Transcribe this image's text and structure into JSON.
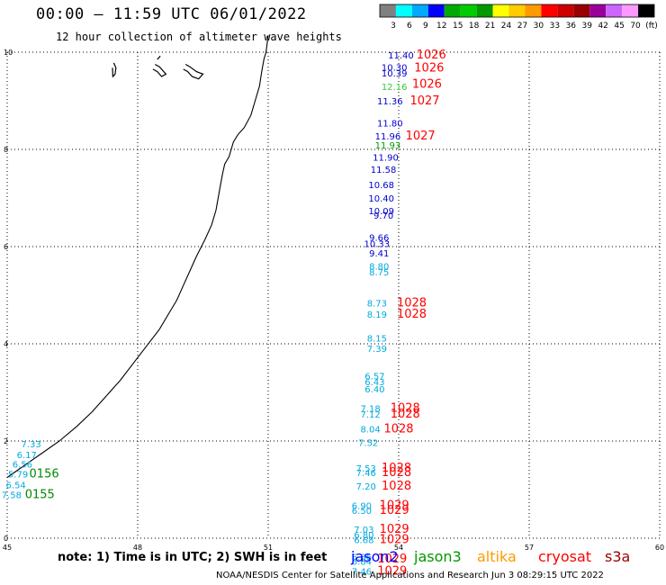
{
  "title": "00:00 – 11:59 UTC 06/01/2022",
  "subtitle": "12 hour collection of altimeter wave heights",
  "colorbar": {
    "colors": [
      "#808080",
      "#00ffff",
      "#00aaff",
      "#0000ff",
      "#00aa00",
      "#00cc00",
      "#009900",
      "#ffff00",
      "#ffcc00",
      "#ff9900",
      "#ff0000",
      "#cc0000",
      "#990000",
      "#990099",
      "#cc66ff",
      "#ff99ff",
      "#000000"
    ],
    "labels": [
      "3",
      "6",
      "9",
      "12",
      "15",
      "18",
      "21",
      "24",
      "27",
      "30",
      "33",
      "36",
      "39",
      "42",
      "45",
      "70",
      "(ft)"
    ]
  },
  "axes": {
    "x_ticks": [
      "45",
      "48",
      "51",
      "54",
      "57",
      "60"
    ],
    "y_ticks": [
      "0",
      "2",
      "4",
      "6",
      "8",
      "10"
    ],
    "xlim": [
      45,
      60
    ],
    "ylim": [
      0,
      10
    ]
  },
  "observations": [
    {
      "lon": 54.05,
      "lat": 9.87,
      "value": "11.40",
      "color": "#0000cc"
    },
    {
      "lon": 53.9,
      "lat": 9.62,
      "value": "10.30",
      "color": "#0000cc"
    },
    {
      "lon": 53.9,
      "lat": 9.5,
      "value": "10.39",
      "color": "#0000cc"
    },
    {
      "lon": 53.9,
      "lat": 9.22,
      "value": "12.16",
      "color": "#33cc33"
    },
    {
      "lon": 53.8,
      "lat": 8.93,
      "value": "11.36",
      "color": "#0000cc"
    },
    {
      "lon": 53.8,
      "lat": 8.47,
      "value": "11.80",
      "color": "#0000cc"
    },
    {
      "lon": 53.75,
      "lat": 8.2,
      "value": "11.96",
      "color": "#0000cc"
    },
    {
      "lon": 53.75,
      "lat": 8.02,
      "value": "11.93",
      "color": "#009900"
    },
    {
      "lon": 53.7,
      "lat": 7.77,
      "value": "11.90",
      "color": "#0000cc"
    },
    {
      "lon": 53.65,
      "lat": 7.52,
      "value": "11.58",
      "color": "#0000cc"
    },
    {
      "lon": 53.6,
      "lat": 7.2,
      "value": "10.68",
      "color": "#0000cc"
    },
    {
      "lon": 53.6,
      "lat": 6.93,
      "value": "10.40",
      "color": "#0000cc"
    },
    {
      "lon": 53.6,
      "lat": 6.67,
      "value": "10.09",
      "color": "#0000cc"
    },
    {
      "lon": 53.65,
      "lat": 6.57,
      "value": "9.70",
      "color": "#0000cc"
    },
    {
      "lon": 53.55,
      "lat": 6.12,
      "value": "9.66",
      "color": "#0000cc"
    },
    {
      "lon": 53.5,
      "lat": 5.99,
      "value": "10.33",
      "color": "#0000cc"
    },
    {
      "lon": 53.55,
      "lat": 5.8,
      "value": "9.41",
      "color": "#0000cc"
    },
    {
      "lon": 53.55,
      "lat": 5.53,
      "value": "8.80",
      "color": "#00aadd"
    },
    {
      "lon": 53.55,
      "lat": 5.41,
      "value": "8.75",
      "color": "#00aadd"
    },
    {
      "lon": 53.5,
      "lat": 4.77,
      "value": "8.73",
      "color": "#00aadd"
    },
    {
      "lon": 53.5,
      "lat": 4.54,
      "value": "8.19",
      "color": "#00aadd"
    },
    {
      "lon": 53.5,
      "lat": 4.05,
      "value": "8.15",
      "color": "#00aadd"
    },
    {
      "lon": 53.5,
      "lat": 3.83,
      "value": "7.39",
      "color": "#00aadd"
    },
    {
      "lon": 53.45,
      "lat": 3.27,
      "value": "6.57",
      "color": "#00aadd"
    },
    {
      "lon": 53.45,
      "lat": 3.15,
      "value": "6.43",
      "color": "#00aadd"
    },
    {
      "lon": 53.45,
      "lat": 3.0,
      "value": "6.40",
      "color": "#00aadd"
    },
    {
      "lon": 53.35,
      "lat": 2.6,
      "value": "7.18",
      "color": "#00aadd"
    },
    {
      "lon": 53.35,
      "lat": 2.48,
      "value": "7.12",
      "color": "#00aadd"
    },
    {
      "lon": 53.35,
      "lat": 2.18,
      "value": "8.04",
      "color": "#00aadd"
    },
    {
      "lon": 53.3,
      "lat": 1.9,
      "value": "7.52",
      "color": "#00aadd"
    },
    {
      "lon": 53.25,
      "lat": 1.37,
      "value": "7.53",
      "color": "#00aadd"
    },
    {
      "lon": 53.25,
      "lat": 1.28,
      "value": "7.46",
      "color": "#00aadd"
    },
    {
      "lon": 53.25,
      "lat": 1.0,
      "value": "7.20",
      "color": "#00aadd"
    },
    {
      "lon": 53.15,
      "lat": 0.6,
      "value": "6.90",
      "color": "#00aadd"
    },
    {
      "lon": 53.15,
      "lat": 0.5,
      "value": "6.50",
      "color": "#00aadd"
    },
    {
      "lon": 53.2,
      "lat": 0.11,
      "value": "7.03",
      "color": "#00aadd"
    },
    {
      "lon": 53.2,
      "lat": 0.0,
      "value": "6.80",
      "color": "#00aadd"
    },
    {
      "lon": 53.2,
      "lat": -0.1,
      "value": "6.68",
      "color": "#00aadd"
    },
    {
      "lon": 53.15,
      "lat": -0.45,
      "value": "6.86",
      "color": "#00aadd"
    },
    {
      "lon": 53.15,
      "lat": -0.55,
      "value": "6.84",
      "color": "#00aadd"
    },
    {
      "lon": 53.15,
      "lat": -0.75,
      "value": "7.46",
      "color": "#00aadd"
    },
    {
      "lon": 45.55,
      "lat": 1.87,
      "value": "7.33",
      "color": "#00aadd"
    },
    {
      "lon": 45.45,
      "lat": 1.65,
      "value": "6.17",
      "color": "#00aadd"
    },
    {
      "lon": 45.35,
      "lat": 1.45,
      "value": "6.56",
      "color": "#00aadd"
    },
    {
      "lon": 45.25,
      "lat": 1.25,
      "value": "5.79",
      "color": "#00aadd"
    },
    {
      "lon": 45.2,
      "lat": 1.03,
      "value": "6.54",
      "color": "#00aadd"
    },
    {
      "lon": 45.1,
      "lat": 0.82,
      "value": "7.58",
      "color": "#00aadd"
    }
  ],
  "pressure_labels": [
    {
      "lon": 54.75,
      "lat": 9.87,
      "text": "1026",
      "color": "#ff0000"
    },
    {
      "lon": 54.7,
      "lat": 9.6,
      "text": "1026",
      "color": "#ff0000"
    },
    {
      "lon": 54.65,
      "lat": 9.27,
      "text": "1026",
      "color": "#ff0000"
    },
    {
      "lon": 54.6,
      "lat": 8.93,
      "text": "1027",
      "color": "#ff0000"
    },
    {
      "lon": 54.5,
      "lat": 8.2,
      "text": "1027",
      "color": "#ff0000"
    },
    {
      "lon": 54.3,
      "lat": 4.77,
      "text": "1028",
      "color": "#ff0000"
    },
    {
      "lon": 54.3,
      "lat": 4.54,
      "text": "1028",
      "color": "#ff0000"
    },
    {
      "lon": 54.15,
      "lat": 2.6,
      "text": "1028",
      "color": "#ff0000"
    },
    {
      "lon": 54.15,
      "lat": 2.48,
      "text": "1028",
      "color": "#ff0000"
    },
    {
      "lon": 54.0,
      "lat": 2.18,
      "text": "1028",
      "color": "#ff0000"
    },
    {
      "lon": 53.95,
      "lat": 1.37,
      "text": "1028",
      "color": "#ff0000"
    },
    {
      "lon": 53.95,
      "lat": 1.28,
      "text": "1028",
      "color": "#ff0000"
    },
    {
      "lon": 53.95,
      "lat": 1.0,
      "text": "1028",
      "color": "#ff0000"
    },
    {
      "lon": 53.9,
      "lat": 0.6,
      "text": "1029",
      "color": "#ff0000"
    },
    {
      "lon": 53.9,
      "lat": 0.5,
      "text": "1029",
      "color": "#ff0000"
    },
    {
      "lon": 53.9,
      "lat": 0.11,
      "text": "1029",
      "color": "#ff0000"
    },
    {
      "lon": 53.9,
      "lat": -0.1,
      "text": "1029",
      "color": "#ff0000"
    },
    {
      "lon": 53.85,
      "lat": -0.5,
      "text": "1029",
      "color": "#ff0000"
    },
    {
      "lon": 53.85,
      "lat": -0.75,
      "text": "1029",
      "color": "#ff0000"
    },
    {
      "lon": 45.85,
      "lat": 1.25,
      "text": "0156",
      "color": "#008800"
    },
    {
      "lon": 45.75,
      "lat": 0.82,
      "text": "0155",
      "color": "#008800"
    }
  ],
  "coastline": [
    [
      51.0,
      10.35
    ],
    [
      50.95,
      10.0
    ],
    [
      50.9,
      9.85
    ],
    [
      50.85,
      9.6
    ],
    [
      50.8,
      9.3
    ],
    [
      50.7,
      9.0
    ],
    [
      50.6,
      8.7
    ],
    [
      50.45,
      8.45
    ],
    [
      50.3,
      8.3
    ],
    [
      50.2,
      8.15
    ],
    [
      50.15,
      8.0
    ],
    [
      50.1,
      7.85
    ],
    [
      50.0,
      7.7
    ],
    [
      49.95,
      7.5
    ],
    [
      49.9,
      7.25
    ],
    [
      49.85,
      7.0
    ],
    [
      49.8,
      6.75
    ],
    [
      49.7,
      6.45
    ],
    [
      49.55,
      6.15
    ],
    [
      49.35,
      5.8
    ],
    [
      49.2,
      5.5
    ],
    [
      49.05,
      5.2
    ],
    [
      48.9,
      4.9
    ],
    [
      48.7,
      4.6
    ],
    [
      48.5,
      4.3
    ],
    [
      48.2,
      3.95
    ],
    [
      47.9,
      3.6
    ],
    [
      47.6,
      3.25
    ],
    [
      47.3,
      2.95
    ],
    [
      46.95,
      2.6
    ],
    [
      46.6,
      2.3
    ],
    [
      46.2,
      2.0
    ],
    [
      45.8,
      1.75
    ],
    [
      45.4,
      1.5
    ],
    [
      45.0,
      1.25
    ]
  ],
  "islands": [
    [
      [
        47.45,
        9.78
      ],
      [
        47.5,
        9.68
      ],
      [
        47.48,
        9.55
      ],
      [
        47.43,
        9.5
      ],
      [
        47.42,
        9.68
      ]
    ],
    [
      [
        48.35,
        9.65
      ],
      [
        48.45,
        9.6
      ],
      [
        48.55,
        9.5
      ],
      [
        48.65,
        9.55
      ],
      [
        48.5,
        9.7
      ],
      [
        48.4,
        9.75
      ]
    ],
    [
      [
        48.45,
        9.85
      ],
      [
        48.52,
        9.92
      ]
    ],
    [
      [
        49.1,
        9.75
      ],
      [
        49.2,
        9.7
      ],
      [
        49.35,
        9.6
      ],
      [
        49.5,
        9.55
      ],
      [
        49.4,
        9.45
      ],
      [
        49.25,
        9.5
      ],
      [
        49.15,
        9.6
      ],
      [
        49.05,
        9.65
      ]
    ]
  ],
  "note": "note: 1) Time is in UTC; 2) SWH is in feet",
  "satellites": [
    {
      "name": "jason2",
      "color": "#0000ff"
    },
    {
      "name": "jason3",
      "color": "#009900"
    },
    {
      "name": "altika",
      "color": "#ff9900"
    },
    {
      "name": "cryosat",
      "color": "#ff0000"
    },
    {
      "name": "s3a",
      "color": "#990000"
    }
  ],
  "footer": "NOAA/NESDIS Center for Satellite Applications and Research    Jun  3 08:29:15 UTC 2022"
}
